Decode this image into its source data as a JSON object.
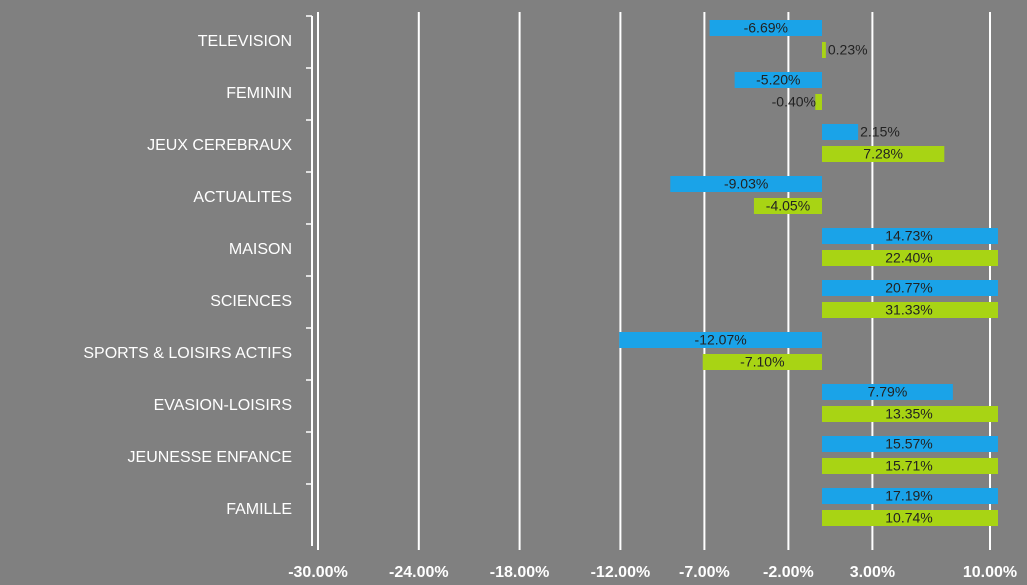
{
  "chart_data": {
    "type": "hbar",
    "categories": [
      "TELEVISION",
      "FEMININ",
      "JEUX CEREBRAUX",
      "ACTUALITES",
      "MAISON",
      "SCIENCES",
      "SPORTS & LOISIRS ACTIFS",
      "EVASION-LOISIRS",
      "JEUNESSE ENFANCE",
      "FAMILLE"
    ],
    "series": [
      {
        "color": "#1aa3e8",
        "values": [
          -6.69,
          -5.2,
          2.15,
          -9.03,
          14.73,
          20.77,
          -12.07,
          7.79,
          15.57,
          17.19
        ],
        "value_labels": [
          "-6.69%",
          "-5.20%",
          "2.15%",
          "-9.03%",
          "14.73%",
          "20.77%",
          "-12.07%",
          "7.79%",
          "15.57%",
          "17.19%"
        ]
      },
      {
        "color": "#a8d414",
        "values": [
          0.23,
          -0.4,
          7.28,
          -4.05,
          22.4,
          31.33,
          -7.1,
          13.35,
          15.71,
          10.74
        ],
        "value_labels": [
          "0.23%",
          "-0.40%",
          "7.28%",
          "-4.05%",
          "22.40%",
          "31.33%",
          "-7.10%",
          "13.35%",
          "15.71%",
          "10.74%"
        ]
      }
    ],
    "xlim": [
      -30,
      10
    ],
    "xticks": [
      {
        "value": -30,
        "label": "-30.00%"
      },
      {
        "value": -24,
        "label": "-24.00%"
      },
      {
        "value": -18,
        "label": "-18.00%"
      },
      {
        "value": -12,
        "label": "-12.00%"
      },
      {
        "value": -7,
        "label": "-7.00%"
      },
      {
        "value": -2,
        "label": "-2.00%"
      },
      {
        "value": 3,
        "label": "3.00%"
      },
      {
        "value": 10,
        "label": "10.00%"
      }
    ],
    "grid": true
  }
}
